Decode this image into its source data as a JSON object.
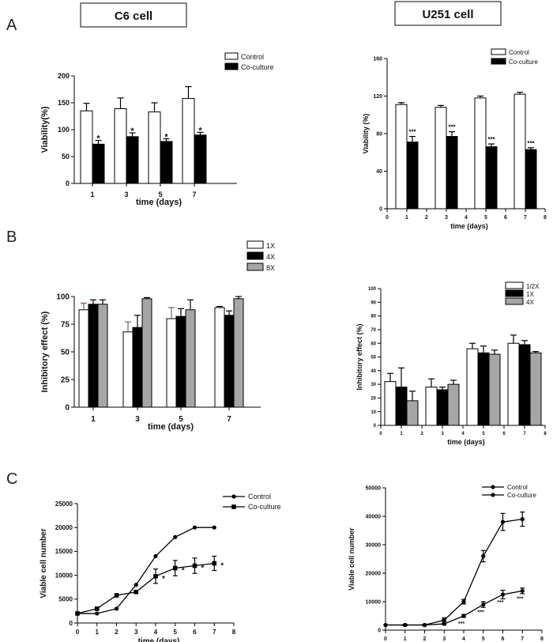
{
  "panel_labels": [
    "A",
    "B",
    "C"
  ],
  "cell_titles": {
    "c6": "C6 cell",
    "u251": "U251 cell"
  },
  "colors": {
    "white_bar": "#ffffff",
    "black_bar": "#000000",
    "gray_bar": "#a6a6a6",
    "error_purple": "#7b5a74"
  },
  "chart_data": [
    {
      "id": "A-C6",
      "type": "bar",
      "xlabel": "time (days)",
      "ylabel": "Viability(%)",
      "categories": [
        "1",
        "3",
        "5",
        "7"
      ],
      "ylim": [
        0,
        200
      ],
      "yticks": [
        "0",
        "50",
        "100",
        "150",
        "200"
      ],
      "series": [
        {
          "name": "Control",
          "values": [
            135,
            139,
            133,
            158
          ],
          "errors": [
            14,
            20,
            17,
            22
          ],
          "fill": "white"
        },
        {
          "name": "Co-culture",
          "values": [
            73,
            87,
            78,
            90
          ],
          "errors": [
            7,
            7,
            5,
            5
          ],
          "fill": "black"
        }
      ],
      "annotations": [
        "*",
        "*",
        "*",
        "*"
      ]
    },
    {
      "id": "A-U251",
      "type": "bar",
      "xlabel": "time (days)",
      "ylabel": "Viability (%)",
      "categories": [
        "1",
        "3",
        "5",
        "7"
      ],
      "xticks": [
        "0",
        "1",
        "2",
        "3",
        "4",
        "5",
        "6",
        "7",
        "8"
      ],
      "ylim": [
        0,
        160
      ],
      "yticks": [
        "0",
        "40",
        "80",
        "120",
        "160"
      ],
      "series": [
        {
          "name": "Control",
          "values": [
            111,
            108,
            118,
            122
          ],
          "errors": [
            2,
            2,
            2,
            2
          ],
          "fill": "white"
        },
        {
          "name": "Co-culture",
          "values": [
            71,
            77,
            66,
            63
          ],
          "errors": [
            6,
            5,
            3,
            2
          ],
          "fill": "black"
        }
      ],
      "annotations": [
        "***",
        "***",
        "***",
        "***"
      ]
    },
    {
      "id": "B-C6",
      "type": "bar",
      "xlabel": "time (days)",
      "ylabel": "Inhibitory effect  (%)",
      "categories": [
        "1",
        "3",
        "5",
        "7"
      ],
      "ylim": [
        0,
        100
      ],
      "yticks": [
        "0",
        "25",
        "50",
        "75",
        "100"
      ],
      "series": [
        {
          "name": "1X",
          "values": [
            88,
            68,
            80,
            90
          ],
          "errors": [
            6,
            9,
            10,
            1
          ],
          "fill": "white"
        },
        {
          "name": "4X",
          "values": [
            93,
            72,
            82,
            83
          ],
          "errors": [
            4,
            11,
            7,
            4
          ],
          "fill": "black"
        },
        {
          "name": "8X",
          "values": [
            93,
            98,
            88,
            98
          ],
          "errors": [
            4,
            1,
            9,
            2
          ],
          "fill": "gray"
        }
      ]
    },
    {
      "id": "B-U251",
      "type": "bar",
      "xlabel": "time (days)",
      "ylabel": "Inhibitory effect (%)",
      "categories": [
        "1",
        "3",
        "5",
        "7"
      ],
      "xticks": [
        "0",
        "1",
        "2",
        "3",
        "4",
        "5",
        "6",
        "7",
        "8"
      ],
      "ylim": [
        0,
        100
      ],
      "yticks": [
        "0",
        "10",
        "20",
        "30",
        "40",
        "50",
        "60",
        "70",
        "80",
        "90",
        "100"
      ],
      "series": [
        {
          "name": "1/2X",
          "values": [
            32,
            28,
            56,
            60
          ],
          "errors": [
            6,
            6,
            4,
            6
          ],
          "fill": "white"
        },
        {
          "name": "1X",
          "values": [
            28,
            26,
            53,
            59
          ],
          "errors": [
            14,
            2,
            5,
            3
          ],
          "fill": "black"
        },
        {
          "name": "4X",
          "values": [
            18,
            30,
            52,
            53
          ],
          "errors": [
            7,
            3,
            3,
            1
          ],
          "fill": "gray"
        }
      ]
    },
    {
      "id": "C-C6",
      "type": "line",
      "xlabel": "time (days)",
      "ylabel": "Viable cell number",
      "x": [
        0,
        1,
        2,
        3,
        4,
        5,
        6,
        7
      ],
      "xlim": [
        0,
        8
      ],
      "xticks": [
        "0",
        "1",
        "2",
        "3",
        "4",
        "5",
        "6",
        "7",
        "8"
      ],
      "ylim": [
        0,
        25000
      ],
      "yticks": [
        "0",
        "5000",
        "10000",
        "15000",
        "20000",
        "25000"
      ],
      "series": [
        {
          "name": "Control",
          "marker": "circle",
          "values": [
            2000,
            2000,
            3000,
            8000,
            14000,
            18000,
            20000,
            20000
          ]
        },
        {
          "name": "Co-culture",
          "marker": "square",
          "values": [
            2000,
            3000,
            5800,
            6500,
            9800,
            11500,
            12000,
            12500
          ],
          "errors": [
            0,
            0,
            0,
            0,
            1500,
            1600,
            1600,
            1500
          ]
        }
      ],
      "annotations": [
        {
          "x": 4,
          "text": "*"
        },
        {
          "x": 5,
          "text": "*"
        },
        {
          "x": 6,
          "text": "*"
        },
        {
          "x": 7,
          "text": "*"
        }
      ]
    },
    {
      "id": "C-U251",
      "type": "line",
      "xlabel": "time (days)",
      "ylabel": "Viable cell number",
      "x": [
        0,
        1,
        2,
        3,
        4,
        5,
        6,
        7
      ],
      "xlim": [
        0,
        8
      ],
      "xticks": [
        "0",
        "1",
        "2",
        "3",
        "4",
        "5",
        "6",
        "7",
        "8"
      ],
      "ylim": [
        0,
        50000
      ],
      "yticks": [
        "0",
        "10000",
        "20000",
        "30000",
        "40000",
        "50000"
      ],
      "series": [
        {
          "name": "Control",
          "marker": "circle",
          "values": [
            1800,
            1800,
            1800,
            3500,
            10000,
            26000,
            38000,
            39000
          ],
          "errors": [
            0,
            300,
            300,
            500,
            800,
            2000,
            3000,
            2500
          ]
        },
        {
          "name": "Co-culture",
          "marker": "circle",
          "values": [
            1800,
            1800,
            1800,
            2200,
            5000,
            9000,
            12500,
            13800
          ],
          "errors": [
            0,
            200,
            200,
            300,
            500,
            1000,
            1500,
            1000
          ]
        }
      ],
      "annotations": [
        {
          "x": 3,
          "text": "**"
        },
        {
          "x": 4,
          "text": "***"
        },
        {
          "x": 5,
          "text": "***"
        },
        {
          "x": 6,
          "text": "***"
        },
        {
          "x": 7,
          "text": "***"
        }
      ]
    }
  ]
}
